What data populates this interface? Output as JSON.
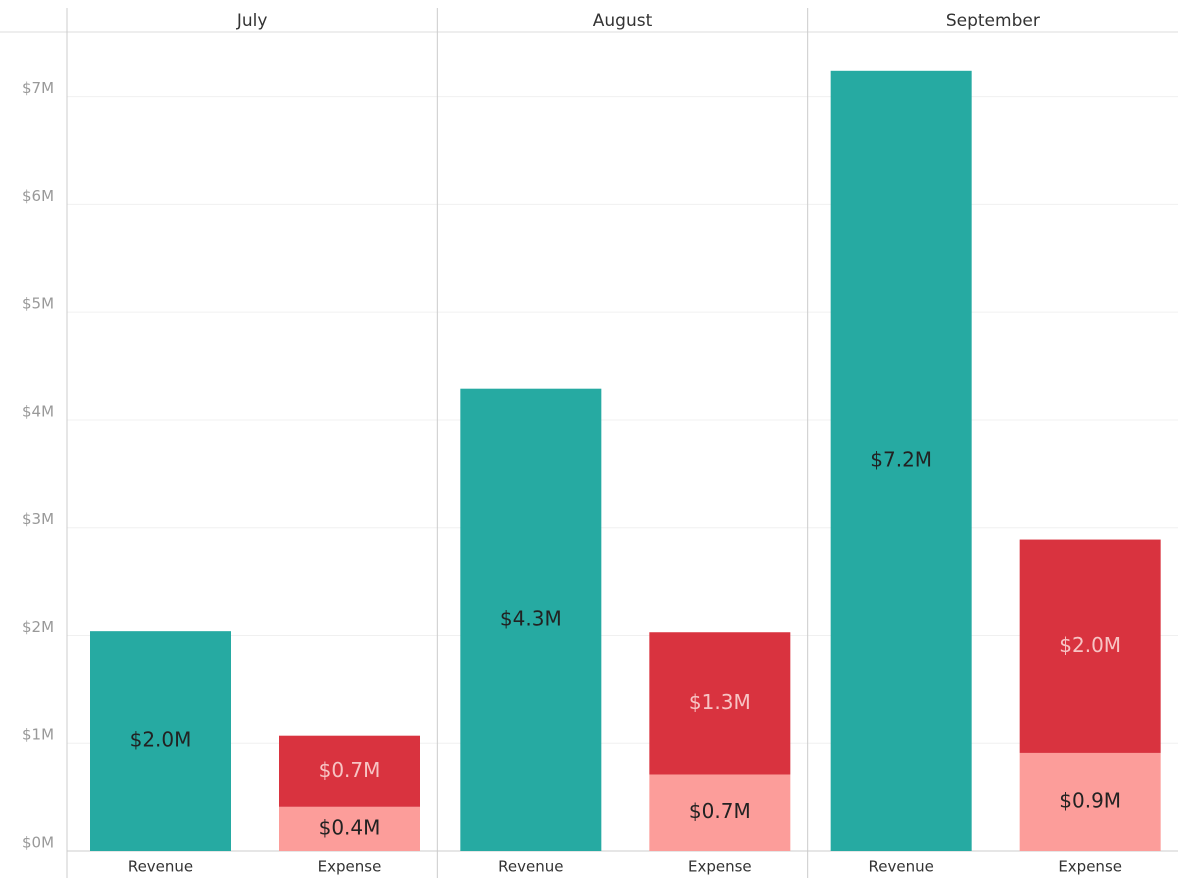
{
  "chart_data": {
    "type": "stacked-bar-panels",
    "ylim": [
      0,
      7.6
    ],
    "yticks": [
      {
        "value": 0,
        "label": "$0M"
      },
      {
        "value": 1,
        "label": "$1M"
      },
      {
        "value": 2,
        "label": "$2M"
      },
      {
        "value": 3,
        "label": "$3M"
      },
      {
        "value": 4,
        "label": "$4M"
      },
      {
        "value": 5,
        "label": "$5M"
      },
      {
        "value": 6,
        "label": "$6M"
      },
      {
        "value": 7,
        "label": "$7M"
      }
    ],
    "grid": true,
    "panels": [
      {
        "title": "July",
        "bars": [
          {
            "label": "Revenue",
            "segments": [
              {
                "value": 2.04,
                "value_label": "$2.0M",
                "color": "#26aaa2",
                "label_color": "#222222"
              }
            ]
          },
          {
            "label": "Expense",
            "segments": [
              {
                "value": 0.41,
                "value_label": "$0.4M",
                "color": "#fc9d9a",
                "label_color": "#222222"
              },
              {
                "value": 0.66,
                "value_label": "$0.7M",
                "color": "#d9333f",
                "label_color": "#f7c4c4"
              }
            ]
          }
        ]
      },
      {
        "title": "August",
        "bars": [
          {
            "label": "Revenue",
            "segments": [
              {
                "value": 4.29,
                "value_label": "$4.3M",
                "color": "#26aaa2",
                "label_color": "#222222"
              }
            ]
          },
          {
            "label": "Expense",
            "segments": [
              {
                "value": 0.71,
                "value_label": "$0.7M",
                "color": "#fc9d9a",
                "label_color": "#222222"
              },
              {
                "value": 1.32,
                "value_label": "$1.3M",
                "color": "#d9333f",
                "label_color": "#f7c4c4"
              }
            ]
          }
        ]
      },
      {
        "title": "September",
        "bars": [
          {
            "label": "Revenue",
            "segments": [
              {
                "value": 7.24,
                "value_label": "$7.2M",
                "color": "#26aaa2",
                "label_color": "#222222"
              }
            ]
          },
          {
            "label": "Expense",
            "segments": [
              {
                "value": 0.91,
                "value_label": "$0.9M",
                "color": "#fc9d9a",
                "label_color": "#222222"
              },
              {
                "value": 1.98,
                "value_label": "$2.0M",
                "color": "#d9333f",
                "label_color": "#f7c4c4"
              }
            ]
          }
        ]
      }
    ]
  }
}
